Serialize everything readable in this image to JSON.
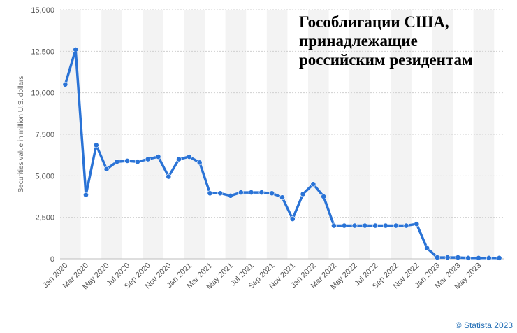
{
  "chart_data": {
    "type": "line",
    "title_lines": [
      "Гособлигации США,",
      "принадлежащие",
      "российским резидентам"
    ],
    "ylabel": "Securities value in million U.S. dollars",
    "xlabel": "",
    "ylim": [
      0,
      15000
    ],
    "yticks": [
      0,
      2500,
      5000,
      7500,
      10000,
      12500,
      15000
    ],
    "ytick_labels": [
      "0",
      "2,500",
      "5,000",
      "7,500",
      "10,000",
      "12,500",
      "15,000"
    ],
    "grid": true,
    "x": [
      "Jan 2020",
      "Feb 2020",
      "Mar 2020",
      "Apr 2020",
      "May 2020",
      "Jun 2020",
      "Jul 2020",
      "Aug 2020",
      "Sep 2020",
      "Oct 2020",
      "Nov 2020",
      "Dec 2020",
      "Jan 2021",
      "Feb 2021",
      "Mar 2021",
      "Apr 2021",
      "May 2021",
      "Jun 2021",
      "Jul 2021",
      "Aug 2021",
      "Sep 2021",
      "Oct 2021",
      "Nov 2021",
      "Dec 2021",
      "Jan 2022",
      "Feb 2022",
      "Mar 2022",
      "Apr 2022",
      "May 2022",
      "Jun 2022",
      "Jul 2022",
      "Aug 2022",
      "Sep 2022",
      "Oct 2022",
      "Nov 2022",
      "Dec 2022",
      "Jan 2023",
      "Feb 2023",
      "Mar 2023",
      "Apr 2023",
      "May 2023",
      "Jun 2023",
      "Jul 2023"
    ],
    "xtick_labels": [
      "Jan 2020",
      "Mar 2020",
      "May 2020",
      "Jul 2020",
      "Sep 2020",
      "Nov 2020",
      "Jan 2021",
      "Mar 2021",
      "May 2021",
      "Jul 2021",
      "Sep 2021",
      "Nov 2021",
      "Jan 2022",
      "Mar 2022",
      "May 2022",
      "Jul 2022",
      "Sep 2022",
      "Nov 2022",
      "Jan 2023",
      "Mar 2023",
      "May 2023"
    ],
    "series": [
      {
        "color": "#2a73d6",
        "values": [
          10500,
          12600,
          3850,
          6850,
          5400,
          5850,
          5900,
          5850,
          6000,
          6150,
          4950,
          6000,
          6150,
          5800,
          3950,
          3950,
          3800,
          4000,
          4000,
          4000,
          3950,
          3700,
          2400,
          3900,
          4500,
          3750,
          2000,
          2000,
          2000,
          2000,
          2000,
          2000,
          2000,
          2000,
          2100,
          650,
          80,
          80,
          80,
          50,
          50,
          50,
          50
        ]
      }
    ]
  },
  "footer": {
    "copyright": "© Statista 2023"
  }
}
